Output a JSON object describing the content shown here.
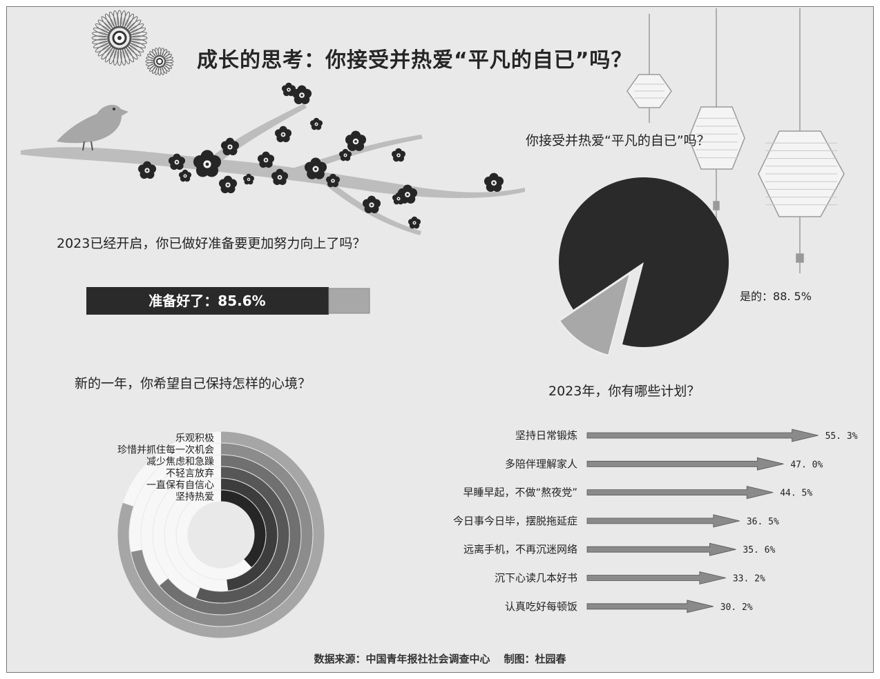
{
  "title": "成长的思考：你接受并热爱“平凡的自已”吗？",
  "q1": {
    "question": "2023已经开启，你已做好准备要更加努力向上了吗？",
    "label": "准备好了：",
    "value_text": "85.6%",
    "value": 85.6
  },
  "q2": {
    "question": "你接受并热爱“平凡的自已”吗？",
    "label": "是的：",
    "value_text": "88. 5%"
  },
  "q3": {
    "question": "新的一年，你希望自己保持怎样的心境？"
  },
  "q4": {
    "question": "2023年，你有哪些计划？"
  },
  "colors": {
    "background": "#e9e9e9",
    "dark": "#2a2a2a",
    "light_gray": "#a8a8a8",
    "arrow": "#8a8a8a"
  },
  "chart_data": [
    {
      "type": "bar",
      "id": "ready",
      "categories": [
        "准备好了"
      ],
      "values": [
        85.6
      ],
      "unit": "%"
    },
    {
      "type": "pie",
      "id": "accept",
      "slices": [
        {
          "label": "是的",
          "value": 88.5
        },
        {
          "label": "",
          "value": 11.5
        }
      ],
      "unit": "%"
    },
    {
      "type": "bar",
      "id": "mindset",
      "style": "radial",
      "categories": [
        "乐观积极",
        "珍惜并抓住每一次机会",
        "减少焦虑和急躁",
        "不轻言放弃",
        "一直保有自信心",
        "坚持热爱"
      ],
      "values": [
        80,
        72,
        64,
        56,
        48,
        38
      ],
      "ring_colors": [
        "#a6a6a6",
        "#8c8c8c",
        "#707070",
        "#575757",
        "#3d3d3d",
        "#262626"
      ]
    },
    {
      "type": "bar",
      "id": "plans",
      "orientation": "horizontal",
      "categories": [
        "坚持日常锻炼",
        "多陪伴理解家人",
        "早睡早起，不做“熬夜党”",
        "今日事今日毕，摆脱拖延症",
        "远离手机，不再沉迷网络",
        "沉下心读几本好书",
        "认真吃好每顿饭"
      ],
      "values": [
        55.3,
        47.0,
        44.5,
        36.5,
        35.6,
        33.2,
        30.2
      ],
      "value_labels": [
        "55. 3%",
        "47. 0%",
        "44. 5%",
        "36. 5%",
        "35. 6%",
        "33. 2%",
        "30. 2%"
      ],
      "unit": "%"
    }
  ],
  "source": {
    "source_label": "数据来源：中国青年报社社会调查中心",
    "credit_label": "制图：杜园春"
  }
}
